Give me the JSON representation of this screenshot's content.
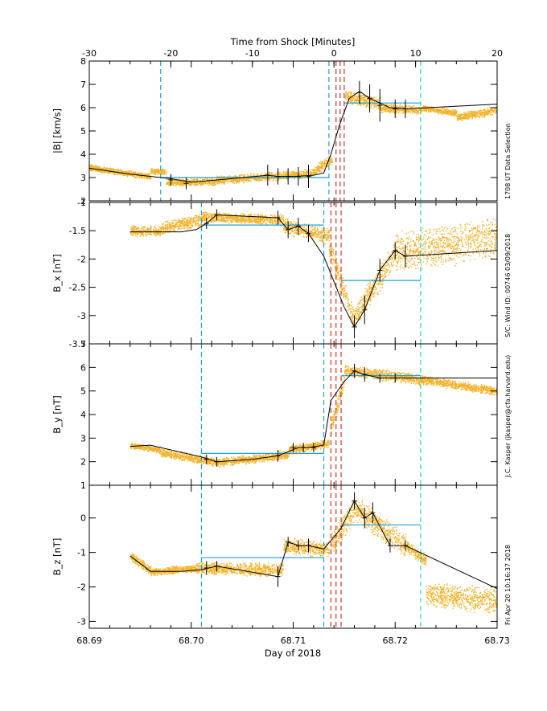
{
  "top_axis": {
    "title": "Time from Shock [Minutes]",
    "ticks": [
      -30,
      -20,
      -10,
      0,
      10,
      20
    ],
    "range": [
      -30,
      20
    ]
  },
  "bottom_axis": {
    "title": "Day of 2018",
    "tick_labels": [
      "68.69",
      "68.70",
      "68.71",
      "68.72",
      "68.73"
    ],
    "range": [
      68.69,
      68.73
    ]
  },
  "side_notes": [
    "1708 UT Data Selection",
    "S/C: Wind ID: 00746 03/09/2018",
    "J.C. Kasper (jkasper@cfa.harvard.edu)",
    "Fri Apr 20 10:16:37 2018"
  ],
  "colors": {
    "scatter": "#f2b32a",
    "line": "#000000",
    "fit": "#1e9fd8",
    "window_left": "#1fa4d4",
    "window_right": "#1ed6c2",
    "shock": "#d2332a"
  },
  "chart_data": [
    {
      "type": "scatter",
      "panel": "B_mag",
      "ylabel": "|B| [km/s]",
      "yticks": [
        2,
        3,
        4,
        5,
        6,
        7,
        8
      ],
      "ylim": [
        2,
        8
      ],
      "window_lines_x": [
        68.697,
        68.7135,
        68.7225
      ],
      "shock_lines_x": [
        68.7142,
        68.7146,
        68.715
      ],
      "fits": [
        {
          "x": [
            68.697,
            68.7135
          ],
          "y": 3.0
        },
        {
          "x": [
            68.715,
            68.7225
          ],
          "y": 6.2
        }
      ],
      "trace": {
        "x": [
          68.69,
          68.694,
          68.698,
          68.7,
          68.704,
          68.7075,
          68.7085,
          68.71,
          68.712,
          68.713,
          68.7137,
          68.7145,
          68.7155,
          68.7165,
          68.7175,
          68.7195,
          68.721,
          68.73
        ],
        "y": [
          3.4,
          3.15,
          2.95,
          2.8,
          2.95,
          3.1,
          3.05,
          3.05,
          3.1,
          3.2,
          4.0,
          5.2,
          6.4,
          6.7,
          6.4,
          6.0,
          5.95,
          6.15
        ]
      },
      "error_bars": [
        {
          "x": 68.698,
          "y": 2.9,
          "err": 0.25
        },
        {
          "x": 68.6995,
          "y": 2.75,
          "err": 0.25
        },
        {
          "x": 68.7075,
          "y": 3.1,
          "err": 0.45
        },
        {
          "x": 68.7085,
          "y": 3.05,
          "err": 0.35
        },
        {
          "x": 68.7095,
          "y": 3.05,
          "err": 0.35
        },
        {
          "x": 68.7105,
          "y": 3.05,
          "err": 0.4
        },
        {
          "x": 68.7115,
          "y": 3.05,
          "err": 0.5
        },
        {
          "x": 68.7165,
          "y": 6.65,
          "err": 0.5
        },
        {
          "x": 68.7175,
          "y": 6.4,
          "err": 0.6
        },
        {
          "x": 68.7185,
          "y": 6.1,
          "err": 0.7
        },
        {
          "x": 68.72,
          "y": 5.95,
          "err": 0.4
        },
        {
          "x": 68.721,
          "y": 5.95,
          "err": 0.4
        }
      ],
      "scatter_segments": [
        {
          "x0": 68.69,
          "x1": 68.696,
          "y0": 3.45,
          "y1": 3.05,
          "spread": 0.15
        },
        {
          "x0": 68.696,
          "x1": 68.6975,
          "y0": 3.3,
          "y1": 3.25,
          "spread": 0.15
        },
        {
          "x0": 68.6975,
          "x1": 68.7025,
          "y0": 2.8,
          "y1": 2.85,
          "spread": 0.18
        },
        {
          "x0": 68.7025,
          "x1": 68.712,
          "y0": 2.9,
          "y1": 3.2,
          "spread": 0.2
        },
        {
          "x0": 68.712,
          "x1": 68.7138,
          "y0": 3.3,
          "y1": 3.8,
          "spread": 0.25
        },
        {
          "x0": 68.715,
          "x1": 68.7185,
          "y0": 6.5,
          "y1": 6.2,
          "spread": 0.3
        },
        {
          "x0": 68.7185,
          "x1": 68.7225,
          "y0": 6.0,
          "y1": 5.9,
          "spread": 0.2
        },
        {
          "x0": 68.7225,
          "x1": 68.726,
          "y0": 6.0,
          "y1": 5.8,
          "spread": 0.15
        },
        {
          "x0": 68.726,
          "x1": 68.73,
          "y0": 5.6,
          "y1": 5.9,
          "spread": 0.2
        }
      ]
    },
    {
      "type": "scatter",
      "panel": "Bx",
      "ylabel": "B_x [nT]",
      "yticks": [
        -3.5,
        -3.0,
        -2.5,
        -2.0,
        -1.5,
        -1.0
      ],
      "ylim": [
        -3.5,
        -1.0
      ],
      "window_lines_x": [
        68.701,
        68.713,
        68.7225
      ],
      "shock_lines_x": [
        68.7137,
        68.7142,
        68.7147
      ],
      "fits": [
        {
          "x": [
            68.701,
            68.713
          ],
          "y": -1.4
        },
        {
          "x": [
            68.7147,
            68.7225
          ],
          "y": -2.38
        }
      ],
      "trace": {
        "x": [
          68.694,
          68.699,
          68.7005,
          68.7015,
          68.7025,
          68.7085,
          68.7095,
          68.7105,
          68.7115,
          68.713,
          68.715,
          68.716,
          68.717,
          68.7185,
          68.72,
          68.721,
          68.73
        ],
        "y": [
          -1.52,
          -1.52,
          -1.48,
          -1.37,
          -1.22,
          -1.27,
          -1.48,
          -1.42,
          -1.55,
          -1.95,
          -2.85,
          -3.2,
          -2.9,
          -2.2,
          -1.85,
          -1.95,
          -1.85
        ]
      },
      "error_bars": [
        {
          "x": 68.7015,
          "y": -1.37,
          "err": 0.1
        },
        {
          "x": 68.7025,
          "y": -1.22,
          "err": 0.1
        },
        {
          "x": 68.7085,
          "y": -1.27,
          "err": 0.12
        },
        {
          "x": 68.7095,
          "y": -1.48,
          "err": 0.15
        },
        {
          "x": 68.7105,
          "y": -1.42,
          "err": 0.15
        },
        {
          "x": 68.7115,
          "y": -1.55,
          "err": 0.15
        },
        {
          "x": 68.716,
          "y": -3.2,
          "err": 0.2
        },
        {
          "x": 68.717,
          "y": -2.9,
          "err": 0.25
        },
        {
          "x": 68.7185,
          "y": -2.2,
          "err": 0.2
        },
        {
          "x": 68.72,
          "y": -1.85,
          "err": 0.15
        },
        {
          "x": 68.721,
          "y": -1.95,
          "err": 0.2
        }
      ],
      "scatter_segments": [
        {
          "x0": 68.694,
          "x1": 68.697,
          "y0": -1.5,
          "y1": -1.5,
          "spread": 0.1
        },
        {
          "x0": 68.697,
          "x1": 68.701,
          "y0": -1.45,
          "y1": -1.3,
          "spread": 0.12
        },
        {
          "x0": 68.701,
          "x1": 68.709,
          "y0": -1.25,
          "y1": -1.3,
          "spread": 0.1
        },
        {
          "x0": 68.709,
          "x1": 68.7135,
          "y0": -1.4,
          "y1": -1.6,
          "spread": 0.15
        },
        {
          "x0": 68.7135,
          "x1": 68.716,
          "y0": -1.8,
          "y1": -3.1,
          "spread": 0.2
        },
        {
          "x0": 68.716,
          "x1": 68.72,
          "y0": -3.0,
          "y1": -1.9,
          "spread": 0.25
        },
        {
          "x0": 68.72,
          "x1": 68.73,
          "y0": -1.9,
          "y1": -1.6,
          "spread": 0.4
        }
      ]
    },
    {
      "type": "scatter",
      "panel": "By",
      "ylabel": "B_y [nT]",
      "yticks": [
        1,
        2,
        3,
        4,
        5,
        6,
        7
      ],
      "ylim": [
        1,
        7
      ],
      "window_lines_x": [
        68.701,
        68.713,
        68.7225
      ],
      "shock_lines_x": [
        68.7137,
        68.7142,
        68.7147
      ],
      "fits": [
        {
          "x": [
            68.701,
            68.713
          ],
          "y": 2.35
        },
        {
          "x": [
            68.7147,
            68.7225
          ],
          "y": 5.65
        }
      ],
      "trace": {
        "x": [
          68.694,
          68.696,
          68.701,
          68.7025,
          68.706,
          68.7085,
          68.7105,
          68.7115,
          68.713,
          68.7137,
          68.715,
          68.716,
          68.717,
          68.7185,
          68.73
        ],
        "y": [
          2.65,
          2.7,
          2.2,
          2.0,
          2.1,
          2.25,
          2.6,
          2.6,
          2.7,
          4.6,
          5.4,
          5.85,
          5.7,
          5.55,
          5.55
        ]
      },
      "error_bars": [
        {
          "x": 68.7015,
          "y": 2.1,
          "err": 0.2
        },
        {
          "x": 68.7025,
          "y": 2.0,
          "err": 0.2
        },
        {
          "x": 68.7085,
          "y": 2.25,
          "err": 0.25
        },
        {
          "x": 68.71,
          "y": 2.6,
          "err": 0.2
        },
        {
          "x": 68.711,
          "y": 2.6,
          "err": 0.2
        },
        {
          "x": 68.712,
          "y": 2.6,
          "err": 0.2
        },
        {
          "x": 68.716,
          "y": 5.85,
          "err": 0.3
        },
        {
          "x": 68.717,
          "y": 5.7,
          "err": 0.3
        },
        {
          "x": 68.7185,
          "y": 5.55,
          "err": 0.2
        },
        {
          "x": 68.72,
          "y": 5.55,
          "err": 0.2
        }
      ],
      "scatter_segments": [
        {
          "x0": 68.694,
          "x1": 68.697,
          "y0": 2.7,
          "y1": 2.5,
          "spread": 0.15
        },
        {
          "x0": 68.697,
          "x1": 68.703,
          "y0": 2.4,
          "y1": 1.95,
          "spread": 0.2
        },
        {
          "x0": 68.703,
          "x1": 68.7095,
          "y0": 2.0,
          "y1": 2.3,
          "spread": 0.2
        },
        {
          "x0": 68.7095,
          "x1": 68.7135,
          "y0": 2.5,
          "y1": 2.8,
          "spread": 0.2
        },
        {
          "x0": 68.7137,
          "x1": 68.715,
          "y0": 3.5,
          "y1": 5.5,
          "spread": 0.4
        },
        {
          "x0": 68.715,
          "x1": 68.7225,
          "y0": 5.9,
          "y1": 5.5,
          "spread": 0.25
        },
        {
          "x0": 68.7225,
          "x1": 68.73,
          "y0": 5.5,
          "y1": 5.0,
          "spread": 0.2
        }
      ]
    },
    {
      "type": "scatter",
      "panel": "Bz",
      "ylabel": "B_z [nT]",
      "yticks": [
        -3,
        -2,
        -1,
        0
      ],
      "ylim": [
        -3.2,
        0.95
      ],
      "window_lines_x": [
        68.701,
        68.713,
        68.7225
      ],
      "shock_lines_x": [
        68.7137,
        68.7142,
        68.7147
      ],
      "fits": [
        {
          "x": [
            68.701,
            68.713
          ],
          "y": -1.15
        },
        {
          "x": [
            68.7147,
            68.7225
          ],
          "y": -0.2
        }
      ],
      "trace": {
        "x": [
          68.694,
          68.696,
          68.699,
          68.701,
          68.7025,
          68.7085,
          68.7095,
          68.7105,
          68.7115,
          68.713,
          68.7147,
          68.716,
          68.717,
          68.7178,
          68.7195,
          68.721,
          68.73
        ],
        "y": [
          -1.1,
          -1.55,
          -1.55,
          -1.5,
          -1.4,
          -1.7,
          -0.7,
          -0.8,
          -0.8,
          -0.9,
          -0.3,
          0.5,
          0.0,
          0.15,
          -0.8,
          -0.8,
          -2.05
        ]
      },
      "error_bars": [
        {
          "x": 68.7015,
          "y": -1.45,
          "err": 0.2
        },
        {
          "x": 68.7025,
          "y": -1.4,
          "err": 0.15
        },
        {
          "x": 68.7085,
          "y": -1.7,
          "err": 0.3
        },
        {
          "x": 68.7095,
          "y": -0.7,
          "err": 0.15
        },
        {
          "x": 68.7105,
          "y": -0.8,
          "err": 0.15
        },
        {
          "x": 68.7115,
          "y": -0.8,
          "err": 0.2
        },
        {
          "x": 68.716,
          "y": 0.5,
          "err": 0.25
        },
        {
          "x": 68.717,
          "y": 0.0,
          "err": 0.3
        },
        {
          "x": 68.7178,
          "y": 0.15,
          "err": 0.3
        },
        {
          "x": 68.7195,
          "y": -0.8,
          "err": 0.2
        },
        {
          "x": 68.721,
          "y": -0.8,
          "err": 0.15
        }
      ],
      "scatter_segments": [
        {
          "x0": 68.694,
          "x1": 68.696,
          "y0": -1.1,
          "y1": -1.5,
          "spread": 0.15
        },
        {
          "x0": 68.696,
          "x1": 68.7005,
          "y0": -1.55,
          "y1": -1.45,
          "spread": 0.12
        },
        {
          "x0": 68.7005,
          "x1": 68.709,
          "y0": -1.45,
          "y1": -1.5,
          "spread": 0.2
        },
        {
          "x0": 68.709,
          "x1": 68.7135,
          "y0": -0.8,
          "y1": -0.9,
          "spread": 0.25
        },
        {
          "x0": 68.7137,
          "x1": 68.716,
          "y0": -0.8,
          "y1": 0.3,
          "spread": 0.4
        },
        {
          "x0": 68.716,
          "x1": 68.721,
          "y0": 0.3,
          "y1": -0.8,
          "spread": 0.4
        },
        {
          "x0": 68.721,
          "x1": 68.723,
          "y0": -0.8,
          "y1": -1.2,
          "spread": 0.2
        },
        {
          "x0": 68.723,
          "x1": 68.73,
          "y0": -2.2,
          "y1": -2.4,
          "spread": 0.4
        }
      ]
    }
  ]
}
